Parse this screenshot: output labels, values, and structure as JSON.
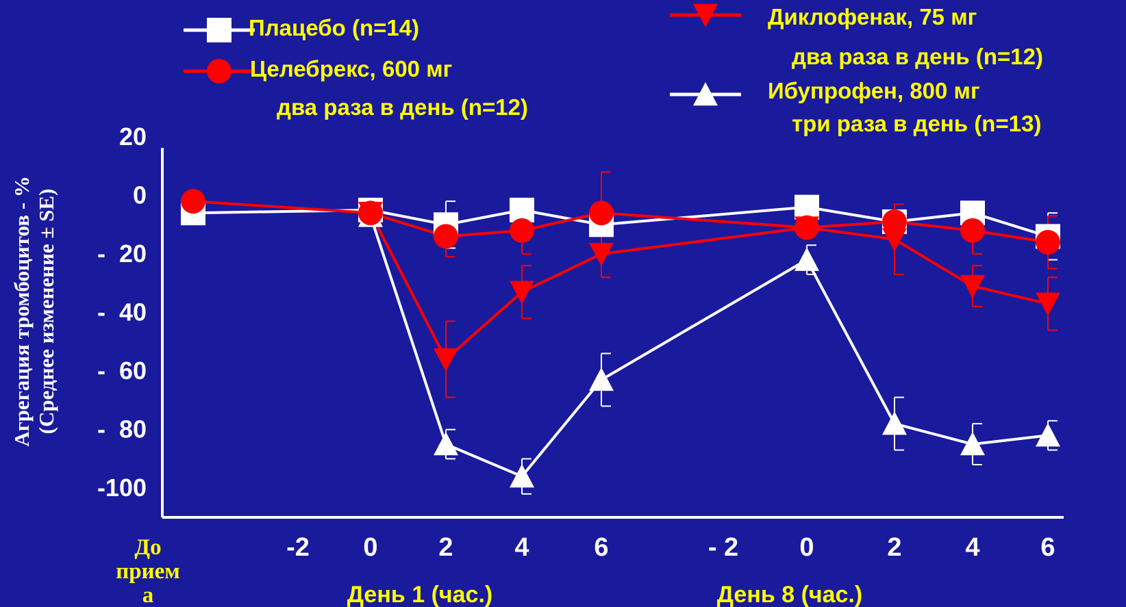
{
  "chart_data": {
    "type": "line",
    "ylabel_lines": [
      "Агрегация тромбоцитов - %",
      "(Среднее изменение ± SE)"
    ],
    "y_ticks": [
      {
        "value": 20,
        "label": "20"
      },
      {
        "value": 0,
        "label": "0"
      },
      {
        "value": -20,
        "label": "-  20"
      },
      {
        "value": -40,
        "label": "-  40"
      },
      {
        "value": -60,
        "label": "-  60"
      },
      {
        "value": -80,
        "label": "-  80"
      },
      {
        "value": -100,
        "label": "-100"
      }
    ],
    "ylim": [
      -110,
      20
    ],
    "x_ticks": [
      {
        "pos": 0,
        "label": ""
      },
      {
        "pos": 1,
        "label": "-2"
      },
      {
        "pos": 2,
        "label": "0"
      },
      {
        "pos": 3,
        "label": "2"
      },
      {
        "pos": 4,
        "label": "4"
      },
      {
        "pos": 5,
        "label": "6"
      },
      {
        "pos": 6,
        "label": "- 2"
      },
      {
        "pos": 7,
        "label": "0"
      },
      {
        "pos": 8,
        "label": "2"
      },
      {
        "pos": 9,
        "label": "4"
      },
      {
        "pos": 10,
        "label": "6"
      }
    ],
    "baseline_label": [
      "До",
      "прием",
      "а"
    ],
    "day_labels": [
      {
        "label": "День 1 (час.)",
        "pos": 3.0
      },
      {
        "label": "День 8 (час.)",
        "pos": 8.0
      }
    ],
    "series": [
      {
        "name": "Плацебо (n=14)",
        "color": "#ffffff",
        "marker": "square",
        "points": [
          {
            "x": 0,
            "y": -6
          },
          {
            "x": 2,
            "y": -5
          },
          {
            "x": 3,
            "y": -10,
            "err": 8
          },
          {
            "x": 4,
            "y": -5
          },
          {
            "x": 5,
            "y": -10
          },
          {
            "x": 7,
            "y": -4
          },
          {
            "x": 8,
            "y": -9
          },
          {
            "x": 9,
            "y": -6
          },
          {
            "x": 10,
            "y": -14,
            "err": 8
          }
        ]
      },
      {
        "name": "Целебрекс, 600 мг два раза в день (n=12)",
        "color": "#ff0000",
        "marker": "circle",
        "points": [
          {
            "x": 0,
            "y": -2
          },
          {
            "x": 2,
            "y": -6
          },
          {
            "x": 3,
            "y": -14,
            "err": 7
          },
          {
            "x": 4,
            "y": -12,
            "err": 8
          },
          {
            "x": 5,
            "y": -6,
            "err": 14
          },
          {
            "x": 7,
            "y": -11
          },
          {
            "x": 8,
            "y": -9
          },
          {
            "x": 9,
            "y": -12,
            "err": 8
          },
          {
            "x": 10,
            "y": -16,
            "err": 9
          }
        ]
      },
      {
        "name": "Диклофенак, 75 мг два раза в день (n=12)",
        "color": "#ff0000",
        "marker": "triangle-down",
        "points": [
          {
            "x": 2,
            "y": -6
          },
          {
            "x": 3,
            "y": -56,
            "err": 13
          },
          {
            "x": 4,
            "y": -33,
            "err": 9
          },
          {
            "x": 5,
            "y": -20,
            "err": 8
          },
          {
            "x": 7,
            "y": -11
          },
          {
            "x": 8,
            "y": -15,
            "err": 12
          },
          {
            "x": 9,
            "y": -31,
            "err": 7
          },
          {
            "x": 10,
            "y": -37,
            "err": 9
          }
        ]
      },
      {
        "name": "Ибупрофен, 800 мг три раза в день (n=13)",
        "color": "#ffffff",
        "marker": "triangle-up",
        "points": [
          {
            "x": 2,
            "y": -7
          },
          {
            "x": 3,
            "y": -85,
            "err": 5
          },
          {
            "x": 4,
            "y": -96,
            "err": 6
          },
          {
            "x": 5,
            "y": -63,
            "err": 9
          },
          {
            "x": 7,
            "y": -22,
            "err": 5
          },
          {
            "x": 8,
            "y": -78,
            "err": 9
          },
          {
            "x": 9,
            "y": -85,
            "err": 7
          },
          {
            "x": 10,
            "y": -82,
            "err": 5
          }
        ]
      }
    ],
    "legend": [
      {
        "series": 0,
        "lines": [
          "Плацебо (n=14)"
        ]
      },
      {
        "series": 1,
        "lines": [
          "Целебрекс, 600 мг",
          "два раза в день (n=12)"
        ]
      },
      {
        "series": 2,
        "lines": [
          "Диклофенак, 75 мг",
          "два раза в день (n=12)"
        ]
      },
      {
        "series": 3,
        "lines": [
          "Ибупрофен, 800 мг",
          "три раза в день (n=13)"
        ]
      }
    ],
    "colors": {
      "background": "#1a1a9c",
      "axis": "#ffffff",
      "tick_labels": "#ffffff",
      "day_labels": "#ffff00",
      "legend_text": "#ffff00"
    }
  }
}
